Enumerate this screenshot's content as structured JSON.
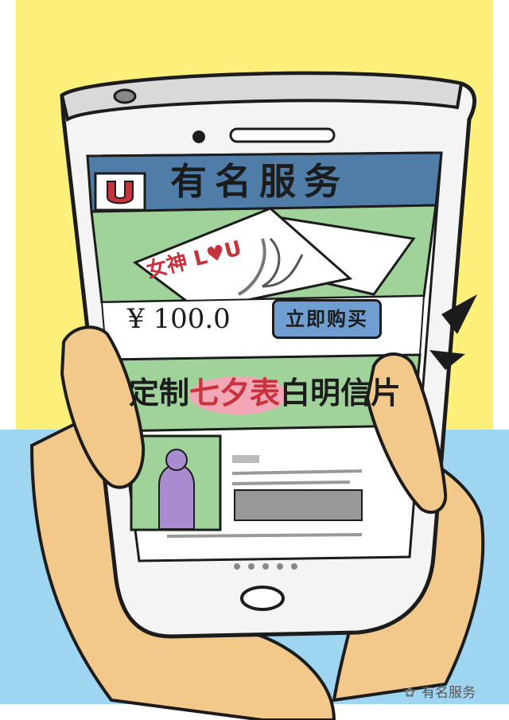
{
  "app": {
    "title": "有名服务",
    "logo_letter": "U"
  },
  "product": {
    "card_text": "女神 L♥U",
    "price": "¥ 100.0",
    "buy_label": "立即购买"
  },
  "banner": {
    "prefix": "定制",
    "highlight": "七夕表",
    "suffix": "白明信片"
  },
  "watermark": {
    "icon": "wechat-icon",
    "text": "有名服务"
  },
  "colors": {
    "yellow_bg": "#fdf07a",
    "blue_bg": "#9ed6f2",
    "header_blue": "#4f7da8",
    "green_panel": "#9fd39a",
    "button_blue": "#6f9fd0",
    "skin": "#f3c98b",
    "accent_red": "#c8323c"
  }
}
